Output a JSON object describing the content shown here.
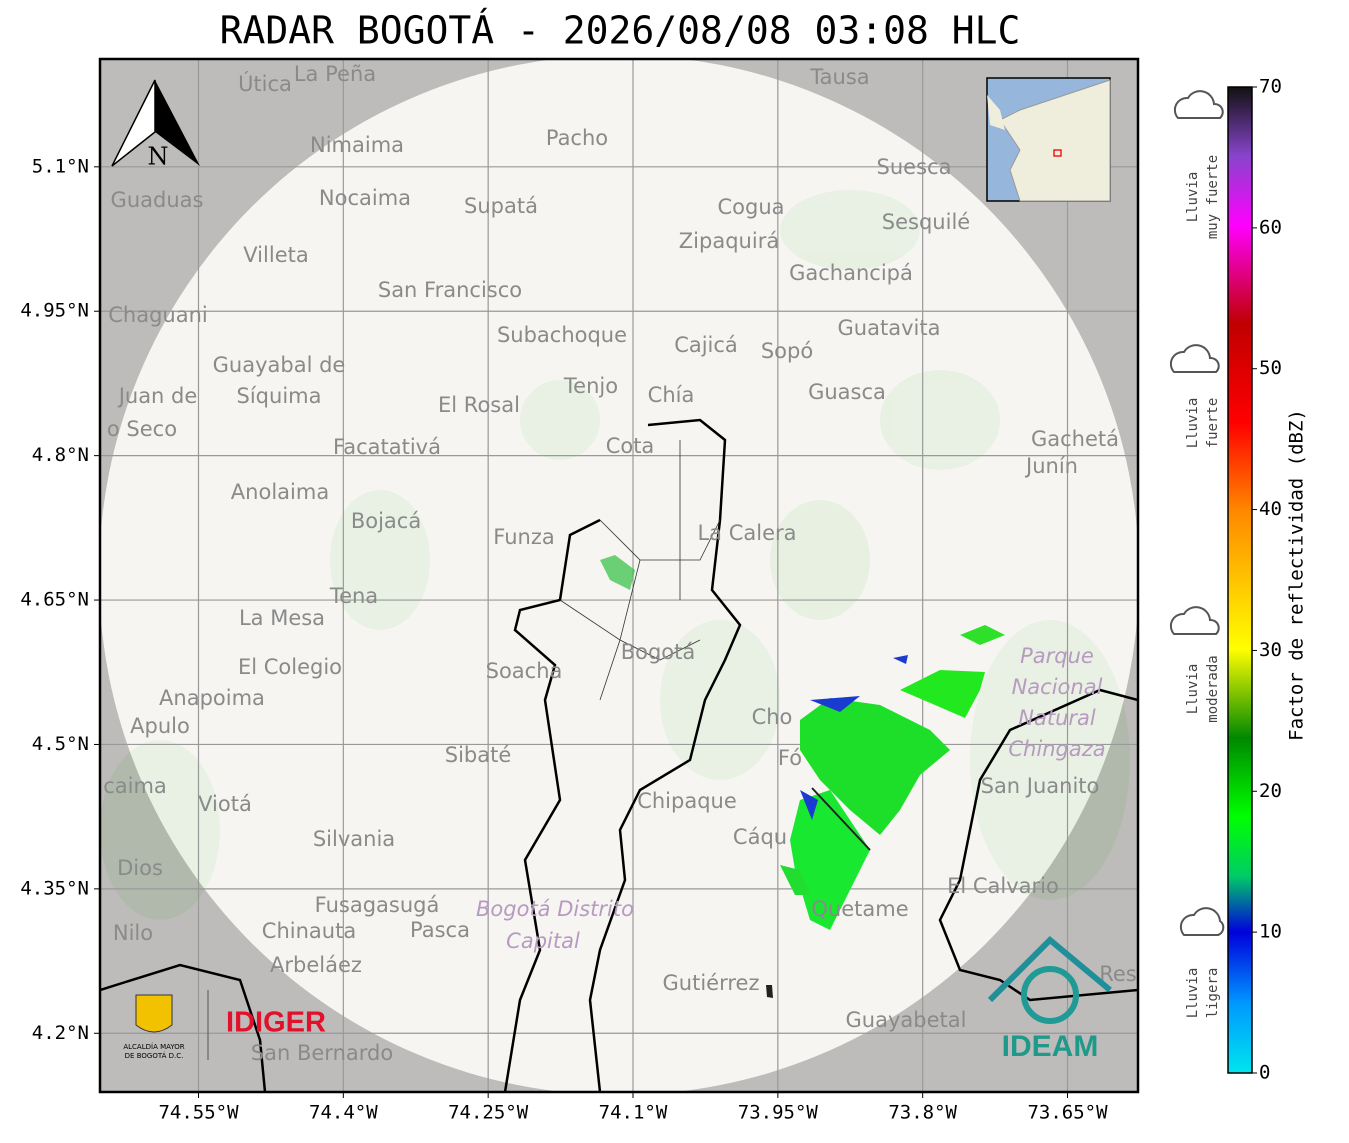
{
  "title": "RADAR BOGOTÁ - 2026/08/08 03:08 HLC",
  "map": {
    "xlim": [
      -74.652,
      -73.577
    ],
    "ylim": [
      4.139,
      5.212
    ],
    "grid": true,
    "xticks": [
      {
        "value": -74.55,
        "label": "74.55°W"
      },
      {
        "value": -74.4,
        "label": "74.4°W"
      },
      {
        "value": -74.25,
        "label": "74.25°W"
      },
      {
        "value": -74.1,
        "label": "74.1°W"
      },
      {
        "value": -73.95,
        "label": "73.95°W"
      },
      {
        "value": -73.8,
        "label": "73.8°W"
      },
      {
        "value": -73.65,
        "label": "73.65°W"
      }
    ],
    "yticks": [
      {
        "value": 4.2,
        "label": "4.2°N"
      },
      {
        "value": 4.35,
        "label": "4.35°N"
      },
      {
        "value": 4.5,
        "label": "4.5°N"
      },
      {
        "value": 4.65,
        "label": "4.65°N"
      },
      {
        "value": 4.8,
        "label": "4.8°N"
      },
      {
        "value": 4.95,
        "label": "4.95°N"
      },
      {
        "value": 5.1,
        "label": "5.1°N"
      }
    ],
    "north_label": "N",
    "places": [
      "Útica",
      "La Peña",
      "Tausa",
      "Pacho",
      "Nimaima",
      "Suesca",
      "Guaduas",
      "Nocaima",
      "Supatá",
      "Cogua",
      "Sesquilé",
      "Zipaquirá",
      "Villeta",
      "Gachancipá",
      "San Francisco",
      "Chaguani",
      "Guatavita",
      "Subachoque",
      "Cajicá",
      "Sopó",
      "Guayabal de",
      "Síquima",
      "Juan de",
      "o Seco",
      "Tenjo",
      "Chía",
      "Guasca",
      "El Rosal",
      "Gachetá",
      "Junín",
      "Facatativá",
      "Cota",
      "Anolaima",
      "Bojacá",
      "Funza",
      "La Calera",
      "Tena",
      "La Mesa",
      "Bogotá",
      "Parque",
      "Nacional",
      "Natural",
      "Chingaza",
      "Soacha",
      "El Colegio",
      "Anapoima",
      "Apulo",
      "Cho",
      "Fó",
      "Sibaté",
      "San Juanito",
      "caima",
      "Viotá",
      "Chipaque",
      "Cáqu",
      "Silvania",
      "Dios",
      "El Calvario",
      "Fusagasugá",
      "Bogotá Distrito",
      "Capital",
      "Quetame",
      "Nilo",
      "Chinauta",
      "Pasca",
      "Arbeláez",
      "Gutiérrez",
      "Res",
      "Guayabetal",
      "San Bernardo"
    ]
  },
  "colorbar": {
    "label": "Factor de reflectividad (dBZ)",
    "lim": [
      0,
      70
    ],
    "ticks": [
      0,
      10,
      20,
      30,
      40,
      50,
      60,
      70
    ],
    "categories": [
      [
        "Lluvia",
        "muy fuerte"
      ],
      [
        "Lluvia",
        "fuerte"
      ],
      [
        "Lluvia",
        "moderada"
      ],
      [
        "Lluvia",
        "ligera"
      ]
    ]
  },
  "logos": {
    "alcaldia": [
      "ALCALDÍA MAYOR",
      "DE BOGOTÁ D.C."
    ],
    "idiger": "IDIGER",
    "ideam": "IDEAM"
  }
}
